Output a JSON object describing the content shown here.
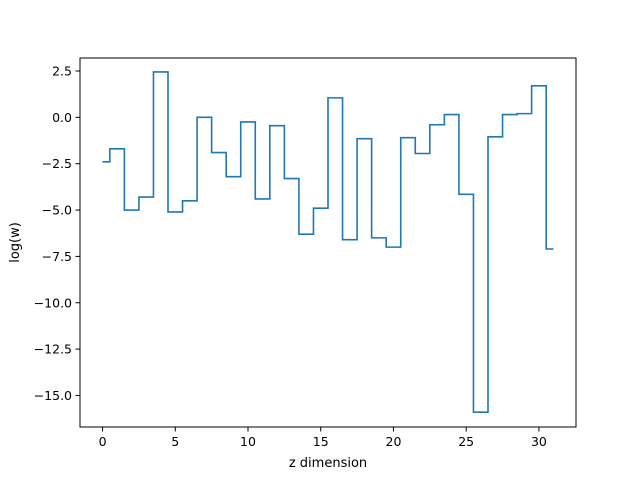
{
  "chart_data": {
    "type": "line",
    "drawstyle": "steps-mid",
    "title": "",
    "xlabel": "z dimension",
    "ylabel": "log(w)",
    "xlim": [
      -1.55,
      32.55
    ],
    "ylim": [
      -16.7,
      3.2
    ],
    "xticks": [
      0,
      5,
      10,
      15,
      20,
      25,
      30
    ],
    "yticks": [
      2.5,
      0.0,
      -2.5,
      -5.0,
      -7.5,
      -10.0,
      -12.5,
      -15.0
    ],
    "ytick_labels": [
      "2.5",
      "0.0",
      "−2.5",
      "−5.0",
      "−7.5",
      "−10.0",
      "−12.5",
      "−15.0"
    ],
    "grid": false,
    "legend": "none",
    "series_color": "#1f77b4",
    "series": [
      {
        "x": [
          0,
          1,
          2,
          3,
          4,
          5,
          6,
          7,
          8,
          9,
          10,
          11,
          12,
          13,
          14,
          15,
          16,
          17,
          18,
          19,
          20,
          21,
          22,
          23,
          24,
          25,
          26,
          27,
          28,
          29,
          30,
          31
        ],
        "values": [
          -2.4,
          -1.7,
          -5.0,
          -4.3,
          2.45,
          -5.1,
          -4.5,
          0.0,
          -1.9,
          -3.2,
          -0.25,
          -4.4,
          -0.45,
          -3.3,
          -6.3,
          -4.9,
          1.05,
          -6.6,
          -1.15,
          -6.5,
          -7.0,
          -1.1,
          -1.95,
          -0.4,
          0.15,
          -4.15,
          -15.9,
          -1.05,
          0.15,
          0.2,
          1.7,
          -7.1
        ]
      }
    ]
  }
}
